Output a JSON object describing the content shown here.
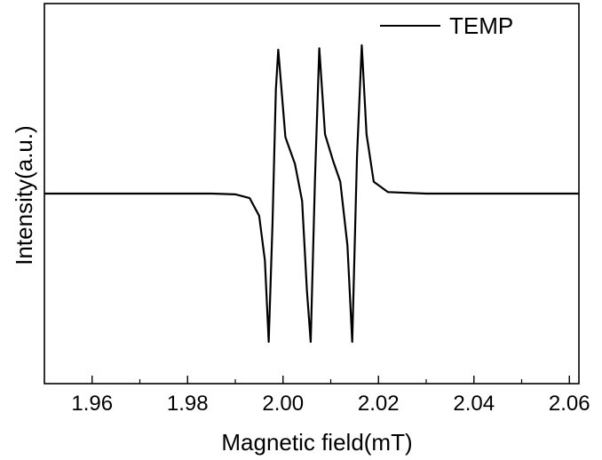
{
  "chart_data": {
    "type": "line",
    "xlabel": "Magnetic field(mT)",
    "ylabel": "Intensity(a.u.)",
    "xlim": [
      1.95,
      2.062
    ],
    "ylim": [
      -1.0,
      1.0
    ],
    "x_ticks": [
      1.96,
      1.98,
      2.0,
      2.02,
      2.04,
      2.06
    ],
    "x_tick_labels": [
      "1.96",
      "1.98",
      "2.00",
      "2.02",
      "2.04",
      "2.06"
    ],
    "grid": false,
    "legend_position": "top-right",
    "series": [
      {
        "name": "TEMP",
        "color": "#000000",
        "x": [
          1.95,
          1.985,
          1.99,
          1.993,
          1.995,
          1.9962,
          1.997,
          1.9978,
          1.9985,
          1.999,
          2.0005,
          2.0025,
          2.004,
          2.005,
          2.0058,
          2.0067,
          2.0076,
          2.0088,
          2.0105,
          2.012,
          2.0135,
          2.0145,
          2.0155,
          2.0165,
          2.0175,
          2.019,
          2.022,
          2.03,
          2.062
        ],
        "y": [
          0.0,
          0.0,
          -0.005,
          -0.03,
          -0.15,
          -0.45,
          -1.0,
          -0.2,
          0.7,
          0.97,
          0.38,
          0.2,
          -0.05,
          -0.65,
          -1.0,
          0.1,
          0.98,
          0.4,
          0.22,
          0.08,
          -0.35,
          -1.0,
          0.25,
          1.0,
          0.4,
          0.08,
          0.01,
          0.0,
          0.0
        ]
      }
    ]
  }
}
